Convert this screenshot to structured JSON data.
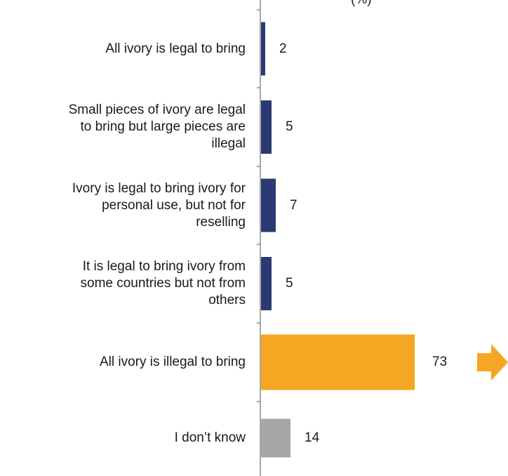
{
  "chart_data": {
    "type": "bar",
    "orientation": "horizontal",
    "title_fragment": "(%)",
    "categories": [
      [
        "All ivory is legal to bring"
      ],
      [
        "Small pieces of ivory are legal",
        "to bring but large pieces are",
        "illegal"
      ],
      [
        "Ivory is legal to bring ivory for",
        "personal use, but not for",
        "reselling"
      ],
      [
        "It is legal to bring ivory from",
        "some countries but not from",
        "others"
      ],
      [
        "All ivory is illegal to bring"
      ],
      [
        "I don’t know"
      ]
    ],
    "values": [
      2,
      5,
      7,
      5,
      73,
      14
    ],
    "bar_colors": [
      "#2b3a73",
      "#2b3a73",
      "#2b3a73",
      "#2b3a73",
      "#f5a623",
      "#a6a6a6"
    ],
    "axis_color": "#8c8c8c",
    "highlight_arrow_color": "#f5a623",
    "xlim": [
      0,
      100
    ]
  }
}
